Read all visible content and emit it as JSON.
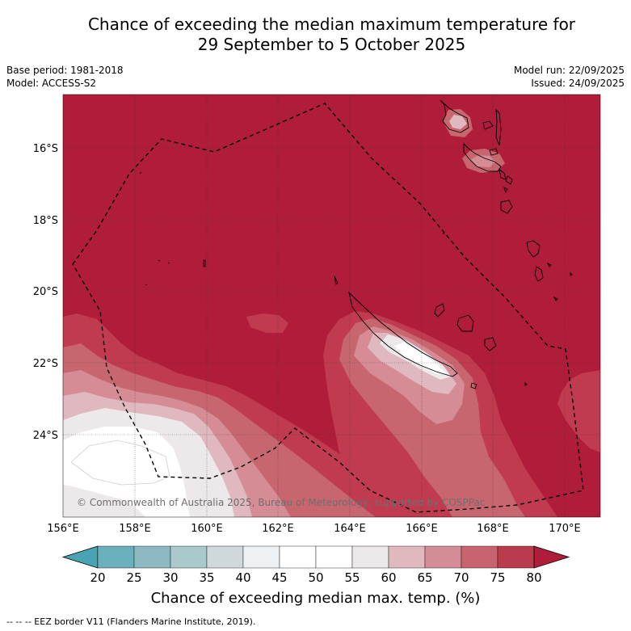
{
  "title": {
    "line1": "Chance of exceeding the median maximum temperature for",
    "line2": "29 September to 5 October 2025"
  },
  "meta": {
    "base_period": "Base period: 1981-2018",
    "model": "Model: ACCESS-S2",
    "model_run": "Model run: 22/09/2025",
    "issued": "Issued: 24/09/2025"
  },
  "map": {
    "lat_labels": [
      "16°S",
      "18°S",
      "20°S",
      "22°S",
      "24°S"
    ],
    "lon_labels": [
      "156°E",
      "158°E",
      "160°E",
      "162°E",
      "164°E",
      "166°E",
      "168°E",
      "170°E"
    ],
    "copyright": "© Commonwealth of Australia 2025, Bureau of Meteorology, supported by COSPPac"
  },
  "colorbar": {
    "ticks": [
      "20",
      "25",
      "30",
      "35",
      "40",
      "45",
      "50",
      "55",
      "60",
      "65",
      "70",
      "75",
      "80"
    ],
    "colors": [
      "#4aa3b2",
      "#6bb0bd",
      "#8db9c3",
      "#aac9cd",
      "#cfd9dc",
      "#edf1f3",
      "#ffffff",
      "#ffffff",
      "#ede8ea",
      "#e0b9bf",
      "#d48c96",
      "#c7646f",
      "#ba3c4c",
      "#b01d3a"
    ],
    "label": "Chance of exceeding median max. temp. (%)"
  },
  "footnote": "--  --  -- EEZ border V11 (Flanders Marine Institute, 2019)."
}
